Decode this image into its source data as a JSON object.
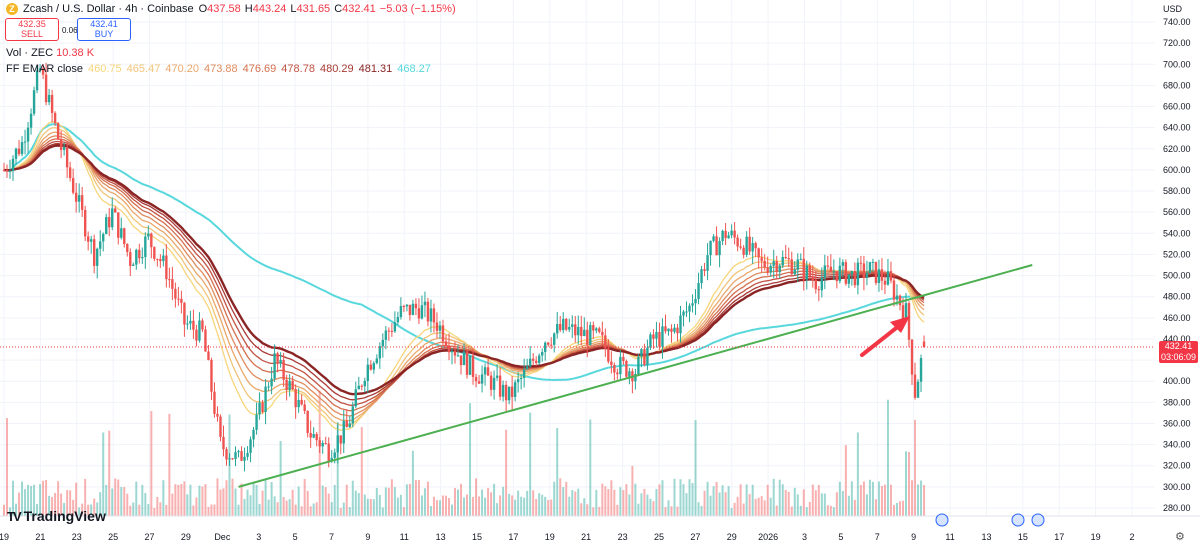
{
  "header": {
    "symbol": "Zcash / U.S. Dollar · 4h · Coinbase",
    "open_label": "O",
    "open": "437.58",
    "high_label": "H",
    "high": "443.24",
    "low_label": "L",
    "low": "431.65",
    "close_label": "C",
    "close": "432.41",
    "change": "−5.03 (−1.15%)"
  },
  "trade": {
    "sell_price": "432.35",
    "sell_label": "SELL",
    "spread": "0.06",
    "buy_price": "432.41",
    "buy_label": "BUY"
  },
  "volume_legend": {
    "label": "Vol · ZEC",
    "value": "10.38 K"
  },
  "ema_legend": {
    "label": "FF EMAR close",
    "values": [
      {
        "text": "460.75",
        "color": "#f7d57a"
      },
      {
        "text": "465.47",
        "color": "#f2c479"
      },
      {
        "text": "470.20",
        "color": "#eaa86c"
      },
      {
        "text": "473.88",
        "color": "#e08c5e"
      },
      {
        "text": "476.69",
        "color": "#d4704f"
      },
      {
        "text": "478.78",
        "color": "#c25243"
      },
      {
        "text": "480.29",
        "color": "#a83a35"
      },
      {
        "text": "481.31",
        "color": "#8b2525"
      },
      {
        "text": "468.27",
        "color": "#58d8dc"
      }
    ]
  },
  "price_scale": {
    "unit": "USD",
    "ticks": [
      "740.00",
      "720.00",
      "700.00",
      "680.00",
      "660.00",
      "640.00",
      "620.00",
      "600.00",
      "580.00",
      "560.00",
      "540.00",
      "520.00",
      "500.00",
      "480.00",
      "460.00",
      "440.00",
      "420.00",
      "400.00",
      "380.00",
      "360.00",
      "340.00",
      "320.00",
      "300.00",
      "280.00"
    ]
  },
  "price_tag": {
    "price": "432.41",
    "countdown": "03:06:09"
  },
  "time_axis": {
    "labels": [
      "19",
      "21",
      "23",
      "25",
      "27",
      "29",
      "Dec",
      "3",
      "5",
      "7",
      "9",
      "11",
      "13",
      "15",
      "17",
      "19",
      "21",
      "23",
      "25",
      "27",
      "29",
      "2026",
      "3",
      "5",
      "7",
      "9",
      "11",
      "13",
      "15",
      "17",
      "19",
      "2"
    ]
  },
  "branding": {
    "logo_text": "TradingView",
    "logo_mark": "TV"
  },
  "colors": {
    "up": "#26a69a",
    "down": "#ef5350",
    "trendline": "#4caf50",
    "sma": "#58d8dc",
    "arrow": "#f23645",
    "price_line": "#f23645"
  },
  "chart_data": {
    "type": "candlestick",
    "timeframe": "4h",
    "y_range": [
      270,
      750
    ],
    "price_points": [
      [
        "2025-11-19",
        600
      ],
      [
        "2025-11-20",
        625
      ],
      [
        "2025-11-21",
        695
      ],
      [
        "2025-11-22",
        630
      ],
      [
        "2025-11-23",
        575
      ],
      [
        "2025-11-24",
        520
      ],
      [
        "2025-11-25",
        560
      ],
      [
        "2025-11-26",
        515
      ],
      [
        "2025-11-27",
        535
      ],
      [
        "2025-11-28",
        505
      ],
      [
        "2025-11-29",
        455
      ],
      [
        "2025-11-30",
        445
      ],
      [
        "2025-12-01",
        340
      ],
      [
        "2025-12-02",
        325
      ],
      [
        "2025-12-03",
        360
      ],
      [
        "2025-12-04",
        420
      ],
      [
        "2025-12-05",
        390
      ],
      [
        "2025-12-06",
        350
      ],
      [
        "2025-12-07",
        335
      ],
      [
        "2025-12-08",
        355
      ],
      [
        "2025-12-09",
        410
      ],
      [
        "2025-12-10",
        440
      ],
      [
        "2025-12-11",
        465
      ],
      [
        "2025-12-12",
        470
      ],
      [
        "2025-12-13",
        455
      ],
      [
        "2025-12-14",
        430
      ],
      [
        "2025-12-15",
        410
      ],
      [
        "2025-12-16",
        400
      ],
      [
        "2025-12-17",
        385
      ],
      [
        "2025-12-18",
        410
      ],
      [
        "2025-12-19",
        440
      ],
      [
        "2025-12-20",
        450
      ],
      [
        "2025-12-21",
        445
      ],
      [
        "2025-12-22",
        440
      ],
      [
        "2025-12-23",
        415
      ],
      [
        "2025-12-24",
        410
      ],
      [
        "2025-12-25",
        440
      ],
      [
        "2025-12-26",
        445
      ],
      [
        "2025-12-27",
        470
      ],
      [
        "2025-12-28",
        520
      ],
      [
        "2025-12-29",
        540
      ],
      [
        "2025-12-30",
        530
      ],
      [
        "2025-12-31",
        510
      ],
      [
        "2026-01-01",
        515
      ],
      [
        "2026-01-02",
        510
      ],
      [
        "2026-01-03",
        495
      ],
      [
        "2026-01-04",
        505
      ],
      [
        "2026-01-05",
        500
      ],
      [
        "2026-01-06",
        505
      ],
      [
        "2026-01-07",
        495
      ],
      [
        "2026-01-08",
        465
      ],
      [
        "2026-01-08T12",
        390
      ],
      [
        "2026-01-09",
        432
      ]
    ],
    "ema_ribbon_last": [
      460.75,
      465.47,
      470.2,
      473.88,
      476.69,
      478.78,
      480.29,
      481.31
    ],
    "sma_last": 468.27,
    "trendline": [
      [
        "2025-12-02",
        300
      ],
      [
        "2026-01-15",
        510
      ]
    ],
    "last_price": 432.41
  }
}
